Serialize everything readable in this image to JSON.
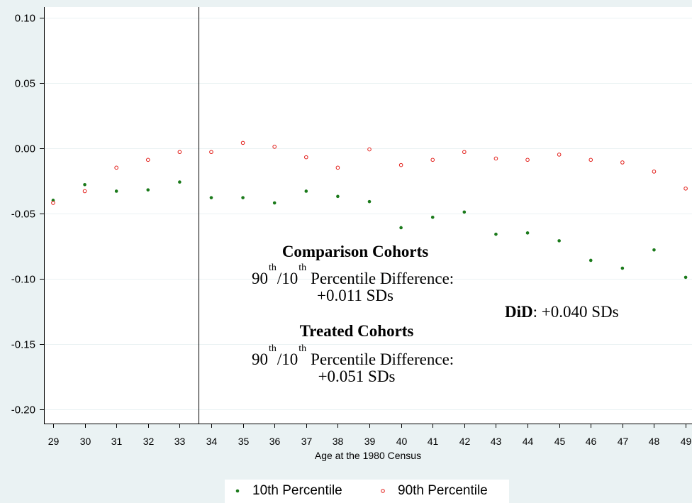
{
  "chart_data": {
    "type": "scatter",
    "x": [
      29,
      30,
      31,
      32,
      33,
      34,
      35,
      36,
      37,
      38,
      39,
      40,
      41,
      42,
      43,
      44,
      45,
      46,
      47,
      48,
      49
    ],
    "series": [
      {
        "name": "10th Percentile",
        "marker": "filled-dot",
        "color": "#1b7a1b",
        "values": [
          -0.04,
          -0.028,
          -0.033,
          -0.032,
          -0.026,
          -0.038,
          -0.038,
          -0.042,
          -0.033,
          -0.037,
          -0.041,
          -0.061,
          -0.053,
          -0.049,
          -0.066,
          -0.065,
          -0.071,
          -0.086,
          -0.092,
          -0.078,
          -0.099
        ]
      },
      {
        "name": "90th Percentile",
        "marker": "hollow-circle",
        "color": "#e3201b",
        "values": [
          -0.042,
          -0.033,
          -0.015,
          -0.009,
          -0.003,
          -0.003,
          0.004,
          0.001,
          -0.007,
          -0.015,
          -0.001,
          -0.013,
          -0.009,
          -0.003,
          -0.008,
          -0.009,
          -0.005,
          -0.009,
          -0.011,
          -0.018,
          -0.031
        ]
      }
    ],
    "xlabel": "Age at the 1980 Census",
    "xticks": [
      "29",
      "30",
      "31",
      "32",
      "33",
      "34",
      "35",
      "36",
      "37",
      "38",
      "39",
      "40",
      "41",
      "42",
      "43",
      "44",
      "45",
      "46",
      "47",
      "48",
      "49"
    ],
    "yticks": [
      "0.10",
      "0.05",
      "0.00",
      "-0.05",
      "-0.10",
      "-0.15",
      "-0.20"
    ],
    "xlim": [
      28.71,
      49.2
    ],
    "ylim": [
      -0.211,
      0.108
    ],
    "reference_line_x": 33.6,
    "grid": true,
    "legend": "bottom",
    "annotations": {
      "comparison": {
        "title": "Comparison Cohorts",
        "p90": "90",
        "sup_a": "th",
        "p10": "/10",
        "sup_b": "th",
        "rest": "Percentile Difference:",
        "value": "+0.011 SDs"
      },
      "treated": {
        "title": "Treated Cohorts",
        "p90": "90",
        "sup_a": "th",
        "p10": "/10",
        "sup_b": "th",
        "rest": "Percentile Difference:",
        "value": "+0.051 SDs"
      },
      "did": {
        "label": "DiD",
        "value": ": +0.040 SDs"
      }
    }
  },
  "colors": {
    "background": "#eaf2f3",
    "plot_background": "#ffffff",
    "grid": "#eaf2f3",
    "axis": "#000000"
  }
}
